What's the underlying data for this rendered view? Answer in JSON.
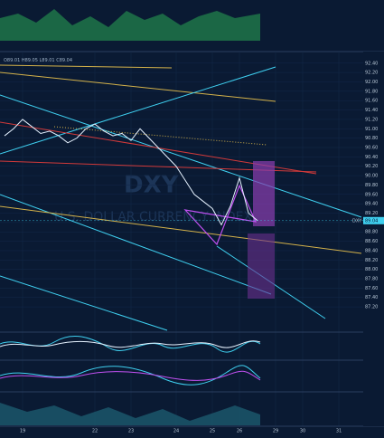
{
  "chart_data": {
    "type": "line",
    "symbol": "DXY",
    "ohlc": [
      "O89.01",
      "H89.05",
      "L89.01",
      "C89.04"
    ],
    "watermark": "DXY",
    "watermark_subtitle": "U.S. DOLLAR CURRENCY INDEX",
    "last_price": 89.04,
    "last_price_label": "89.04",
    "color": "#e6f2ff",
    "grid": true,
    "categories": [
      null,
      null,
      "19",
      null,
      null,
      null,
      null,
      null,
      null,
      null,
      "22",
      null,
      null,
      null,
      "23",
      null,
      null,
      null,
      null,
      "24",
      null,
      null,
      null,
      "25",
      null,
      null,
      "26",
      null,
      null,
      null,
      "29",
      null,
      null,
      "30",
      null,
      null,
      null,
      "31",
      null,
      null
    ],
    "values": [
      90.85,
      91.0,
      91.2,
      91.05,
      90.9,
      90.95,
      90.85,
      90.7,
      90.8,
      91.0,
      91.1,
      90.95,
      90.85,
      90.9,
      90.75,
      91.0,
      90.8,
      90.6,
      90.4,
      90.2,
      89.9,
      89.6,
      89.45,
      89.3,
      88.95,
      89.35,
      89.95,
      89.2,
      89.04,
      null,
      null,
      null,
      null,
      null,
      null,
      null,
      null,
      null,
      null,
      null
    ],
    "ylim": [
      86.7,
      92.55
    ],
    "yticks": [
      {
        "value": 87.2,
        "label": "87.20"
      },
      {
        "value": 87.4,
        "label": "87.40"
      },
      {
        "value": 87.6,
        "label": "87.60"
      },
      {
        "value": 87.8,
        "label": "87.80"
      },
      {
        "value": 88.0,
        "label": "88.00"
      },
      {
        "value": 88.2,
        "label": "88.20"
      },
      {
        "value": 88.4,
        "label": "88.40"
      },
      {
        "value": 88.6,
        "label": "88.60"
      },
      {
        "value": 88.8,
        "label": "88.80"
      },
      {
        "value": 89.0,
        "label": "89.00"
      },
      {
        "value": 89.2,
        "label": "89.20"
      },
      {
        "value": 89.4,
        "label": "89.40"
      },
      {
        "value": 89.6,
        "label": "89.60"
      },
      {
        "value": 89.8,
        "label": "89.80"
      },
      {
        "value": 90.0,
        "label": "90.00"
      },
      {
        "value": 90.2,
        "label": "90.20"
      },
      {
        "value": 90.4,
        "label": "90.40"
      },
      {
        "value": 90.6,
        "label": "90.60"
      },
      {
        "value": 90.8,
        "label": "90.80"
      },
      {
        "value": 91.0,
        "label": "91.00"
      },
      {
        "value": 91.2,
        "label": "91.20"
      },
      {
        "value": 91.4,
        "label": "91.40"
      },
      {
        "value": 91.6,
        "label": "91.60"
      },
      {
        "value": 91.8,
        "label": "91.80"
      },
      {
        "value": 92.0,
        "label": "92.00"
      },
      {
        "value": 92.2,
        "label": "92.20"
      },
      {
        "value": 92.4,
        "label": "92.40"
      }
    ]
  }
}
